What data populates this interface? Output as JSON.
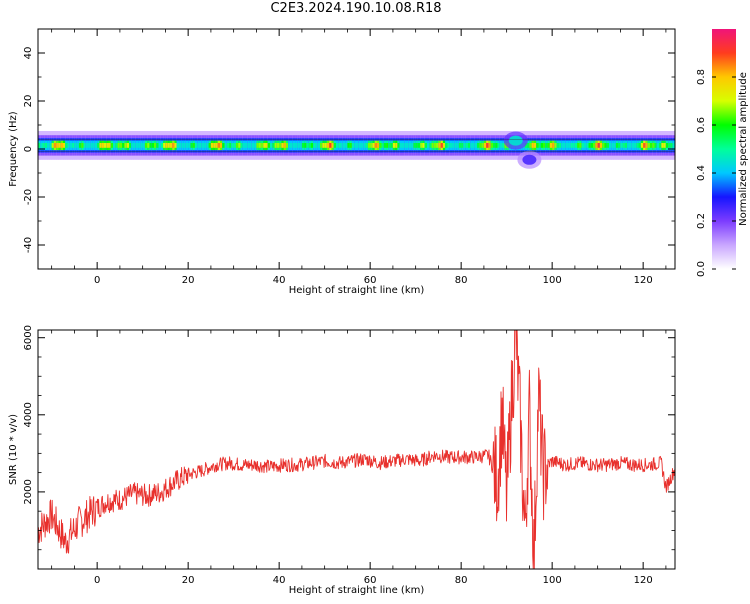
{
  "figure": {
    "title": "C2E3.2024.190.10.08.R18"
  },
  "chart_data": [
    {
      "type": "heatmap",
      "title": "",
      "xlabel": "Height of straight line (km)",
      "ylabel": "Frequency (Hz)",
      "xlim": [
        -13,
        127
      ],
      "ylim": [
        -50,
        50
      ],
      "xticks": [
        0,
        20,
        40,
        60,
        80,
        100,
        120
      ],
      "yticks": [
        40,
        20,
        0,
        -20,
        -40
      ],
      "colorbar": {
        "label": "Normalized spectral amplitude",
        "range": [
          0,
          1
        ],
        "ticks": [
          0.0,
          0.2,
          0.4,
          0.6,
          0.8
        ],
        "colormap": [
          "#ffffff",
          "#c9a6ff",
          "#7c3cff",
          "#1515ff",
          "#00c8ff",
          "#00ff9a",
          "#00ff00",
          "#d7ff00",
          "#ffc800",
          "#ff3c1e",
          "#f0147a"
        ]
      },
      "band": {
        "center_hz": 1.5,
        "half_width_hz": 2.5,
        "mean_amplitude": 0.55
      },
      "features": [
        {
          "x": 92,
          "frequency_hz": 3.5,
          "amplitude": 0.45
        },
        {
          "x": 95,
          "frequency_hz": -4.5,
          "amplitude": 0.25
        }
      ]
    },
    {
      "type": "line",
      "title": "",
      "xlabel": "Height of straight line (km)",
      "ylabel": "SNR (10 * v/v)",
      "xlim": [
        -13,
        127
      ],
      "ylim": [
        0,
        6200
      ],
      "xticks": [
        0,
        20,
        40,
        60,
        80,
        100,
        120
      ],
      "yticks": [
        2000,
        4000,
        6000
      ],
      "line_color": "#e8302c",
      "series": [
        {
          "x": [
            -13,
            -10,
            -7,
            -4,
            -1,
            2,
            5,
            8,
            11,
            14,
            17,
            20,
            23,
            26,
            29,
            32,
            35,
            38,
            41,
            44,
            47,
            50,
            53,
            56,
            59,
            62,
            65,
            68,
            71,
            74,
            77,
            80,
            83,
            86,
            88,
            89,
            90,
            91,
            92,
            93,
            94,
            95,
            96,
            97,
            98,
            99,
            100,
            103,
            106,
            109,
            112,
            115,
            118,
            121,
            124,
            125,
            127
          ],
          "values": [
            1000,
            1400,
            700,
            1200,
            1500,
            1750,
            1800,
            1950,
            1900,
            2000,
            2250,
            2450,
            2550,
            2700,
            2750,
            2700,
            2700,
            2650,
            2700,
            2700,
            2750,
            2800,
            2750,
            2800,
            2850,
            2750,
            2800,
            2850,
            2800,
            2950,
            2900,
            2900,
            2900,
            2950,
            2300,
            4000,
            1800,
            4200,
            6100,
            3800,
            900,
            4100,
            300,
            4500,
            2500,
            2700,
            2800,
            2700,
            2750,
            2700,
            2700,
            2750,
            2700,
            2700,
            2750,
            2100,
            2600
          ]
        }
      ]
    }
  ]
}
